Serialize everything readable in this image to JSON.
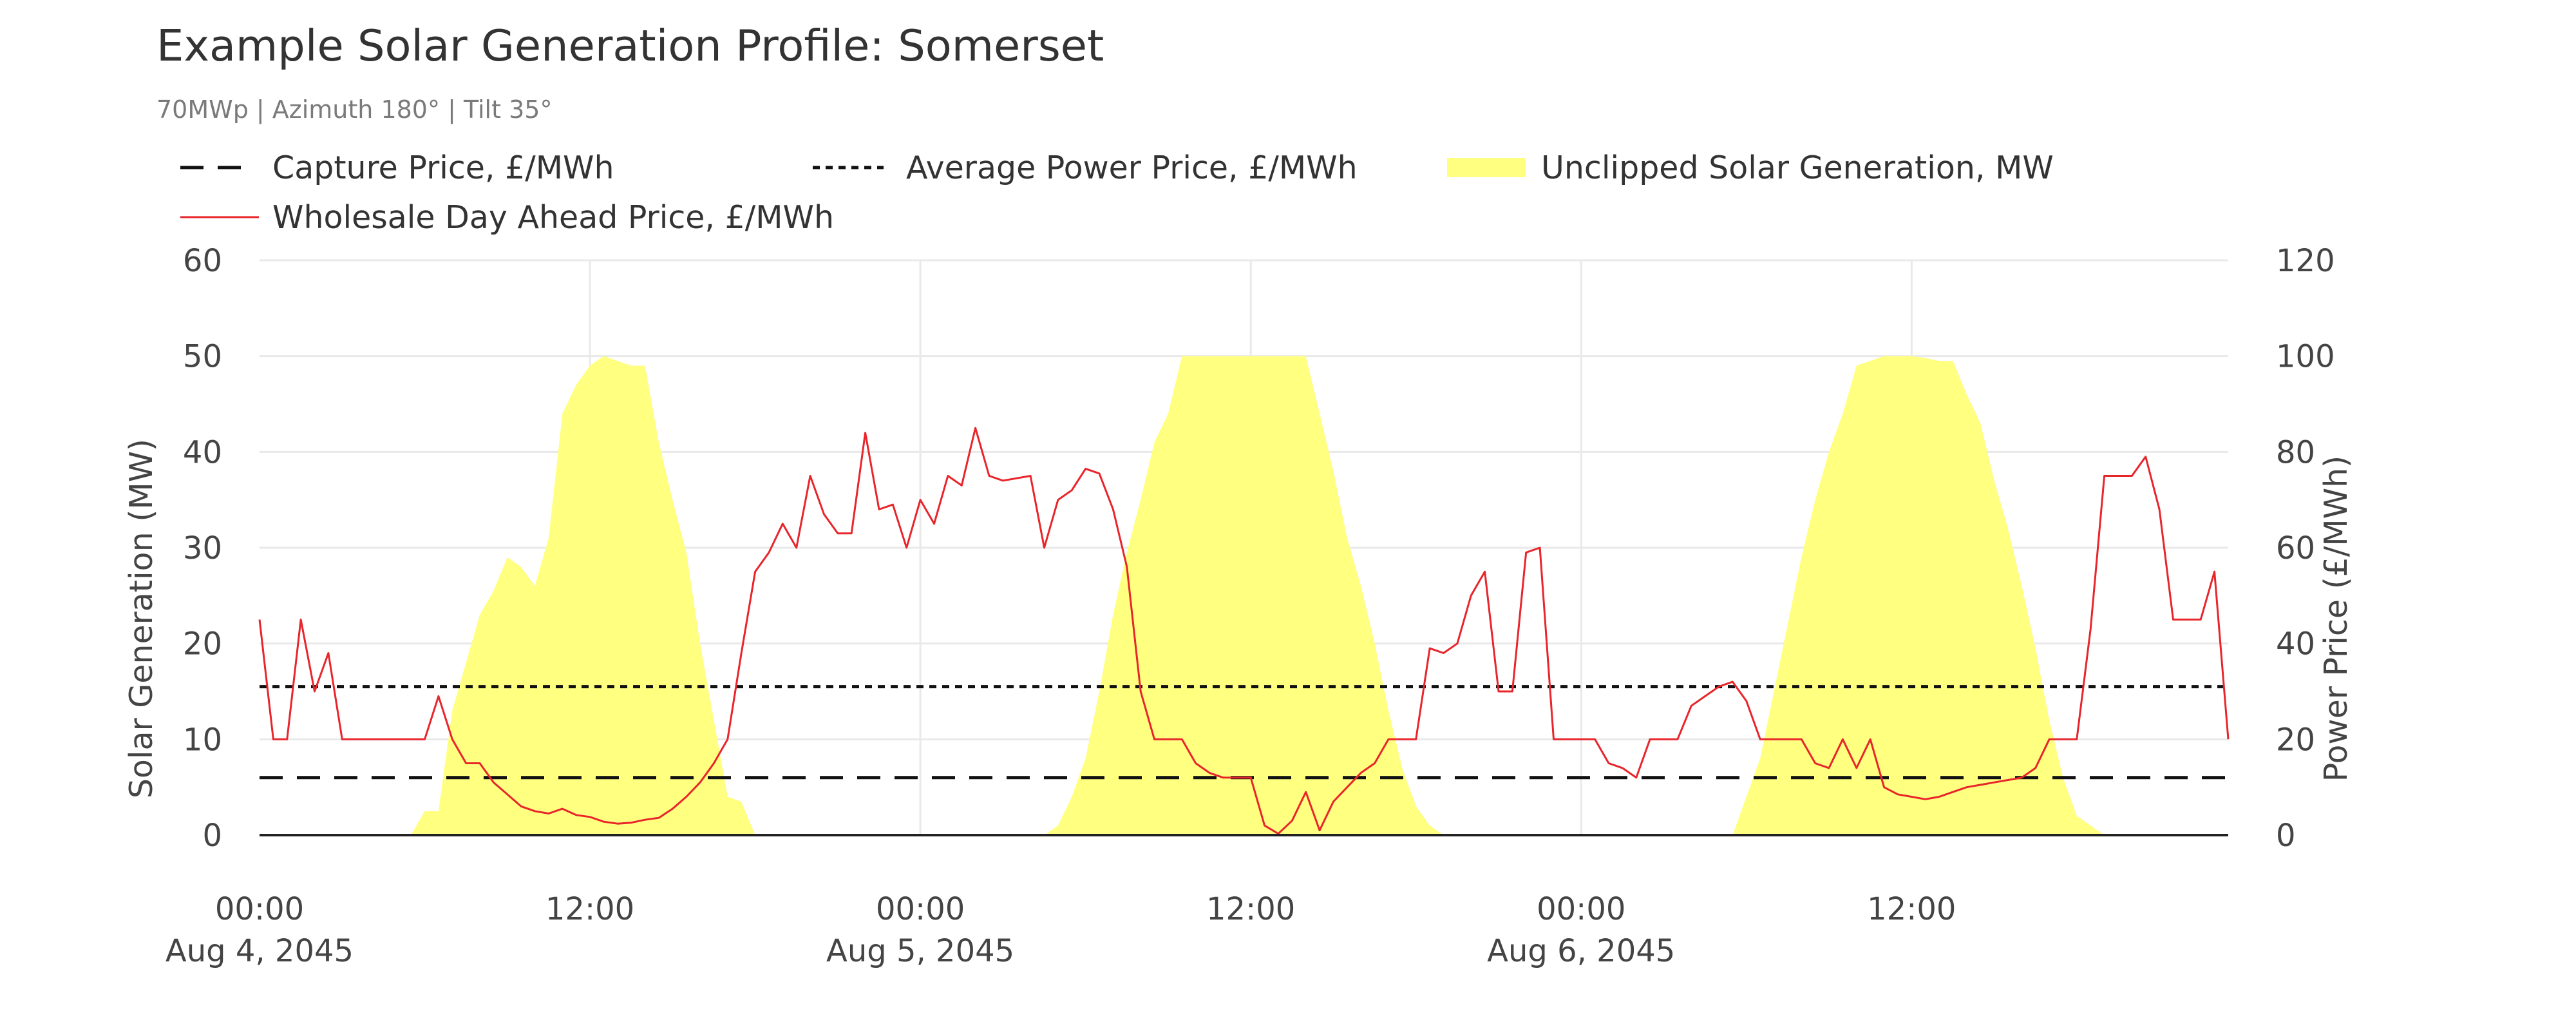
{
  "chart_data": {
    "type": "area",
    "title": "Example Solar Generation Profile: Somerset",
    "subtitle": "70MWp | Azimuth 180° | Tilt 35°",
    "ylabel": "Solar Generation (MW)",
    "y2label": "Power Price (£/MWh)",
    "xlabel": "",
    "ylim": [
      0,
      60
    ],
    "y2lim": [
      0,
      120
    ],
    "xlim_hours": [
      0,
      71.5
    ],
    "grid": true,
    "legend_position": "top",
    "y_ticks": [
      "0",
      "10",
      "20",
      "30",
      "40",
      "50",
      "60"
    ],
    "y2_ticks": [
      "0",
      "20",
      "40",
      "60",
      "80",
      "100",
      "120"
    ],
    "x_ticks": [
      {
        "hour": 0,
        "time": "00:00",
        "date": "Aug 4, 2045"
      },
      {
        "hour": 12,
        "time": "12:00",
        "date": ""
      },
      {
        "hour": 24,
        "time": "00:00",
        "date": "Aug 5, 2045"
      },
      {
        "hour": 36,
        "time": "12:00",
        "date": ""
      },
      {
        "hour": 48,
        "time": "00:00",
        "date": "Aug 6, 2045"
      },
      {
        "hour": 60,
        "time": "12:00",
        "date": ""
      }
    ],
    "series": [
      {
        "name": "Unclipped Solar Generation, MW",
        "axis": "left",
        "style": "area-step",
        "color": "#ffff80",
        "points": [
          [
            5.5,
            0
          ],
          [
            6,
            2.5
          ],
          [
            6.5,
            2.5
          ],
          [
            7,
            13
          ],
          [
            7.5,
            18
          ],
          [
            8,
            23
          ],
          [
            8.5,
            25.5
          ],
          [
            9,
            29
          ],
          [
            9.5,
            28
          ],
          [
            10,
            26
          ],
          [
            10.5,
            31
          ],
          [
            11,
            44
          ],
          [
            11.5,
            47
          ],
          [
            12,
            49
          ],
          [
            12.5,
            50
          ],
          [
            13,
            49.5
          ],
          [
            13.5,
            49
          ],
          [
            14,
            49
          ],
          [
            14.5,
            41
          ],
          [
            15,
            35
          ],
          [
            15.5,
            29.5
          ],
          [
            16,
            20
          ],
          [
            16.5,
            12
          ],
          [
            17,
            4
          ],
          [
            17.5,
            3.5
          ],
          [
            18,
            0
          ],
          [
            28.5,
            0
          ],
          [
            29,
            1
          ],
          [
            29.5,
            4
          ],
          [
            30,
            8
          ],
          [
            30.5,
            15
          ],
          [
            31,
            23
          ],
          [
            31.5,
            29.5
          ],
          [
            32,
            35
          ],
          [
            32.5,
            41
          ],
          [
            33,
            44
          ],
          [
            33.5,
            50
          ],
          [
            34,
            50
          ],
          [
            34.5,
            50
          ],
          [
            35,
            50
          ],
          [
            35.5,
            50
          ],
          [
            36,
            50
          ],
          [
            36.5,
            50
          ],
          [
            37,
            50
          ],
          [
            37.5,
            50
          ],
          [
            38,
            50
          ],
          [
            38.5,
            44
          ],
          [
            39,
            38
          ],
          [
            39.5,
            31
          ],
          [
            40,
            26
          ],
          [
            40.5,
            20
          ],
          [
            41,
            13
          ],
          [
            41.5,
            7
          ],
          [
            42,
            3
          ],
          [
            42.5,
            1
          ],
          [
            43,
            0
          ],
          [
            53.5,
            0
          ],
          [
            54,
            4
          ],
          [
            54.5,
            8
          ],
          [
            55,
            15
          ],
          [
            55.5,
            22
          ],
          [
            56,
            29
          ],
          [
            56.5,
            35
          ],
          [
            57,
            40
          ],
          [
            57.5,
            44
          ],
          [
            58,
            49
          ],
          [
            58.5,
            49.5
          ],
          [
            59,
            50
          ],
          [
            59.5,
            50
          ],
          [
            60,
            50
          ],
          [
            60.5,
            49.8
          ],
          [
            61,
            49.5
          ],
          [
            61.5,
            49.5
          ],
          [
            62,
            46
          ],
          [
            62.5,
            43
          ],
          [
            63,
            37
          ],
          [
            63.5,
            32
          ],
          [
            64,
            26
          ],
          [
            64.5,
            19.5
          ],
          [
            65,
            12
          ],
          [
            65.5,
            6
          ],
          [
            66,
            2
          ],
          [
            66.5,
            1
          ],
          [
            67,
            0
          ]
        ]
      },
      {
        "name": "Wholesale Day Ahead Price, £/MWh",
        "axis": "right",
        "style": "line",
        "color": "#e8252b",
        "points": [
          [
            0,
            45
          ],
          [
            0.5,
            20
          ],
          [
            1,
            20
          ],
          [
            1.5,
            45
          ],
          [
            2,
            30
          ],
          [
            2.5,
            38
          ],
          [
            3,
            20
          ],
          [
            3.5,
            20
          ],
          [
            4,
            20
          ],
          [
            4.5,
            20
          ],
          [
            5,
            20
          ],
          [
            5.5,
            20
          ],
          [
            6,
            20
          ],
          [
            6.5,
            29
          ],
          [
            7,
            20
          ],
          [
            7.5,
            15
          ],
          [
            8,
            15
          ],
          [
            8.5,
            11
          ],
          [
            9,
            8.5
          ],
          [
            9.5,
            6
          ],
          [
            10,
            5
          ],
          [
            10.5,
            4.5
          ],
          [
            11,
            5.5
          ],
          [
            11.5,
            4.2
          ],
          [
            12,
            3.8
          ],
          [
            12.5,
            2.8
          ],
          [
            13,
            2.4
          ],
          [
            13.5,
            2.6
          ],
          [
            14,
            3.2
          ],
          [
            14.5,
            3.6
          ],
          [
            15,
            5.5
          ],
          [
            15.5,
            8
          ],
          [
            16,
            11
          ],
          [
            16.5,
            15
          ],
          [
            17,
            20
          ],
          [
            17.5,
            38
          ],
          [
            18,
            55
          ],
          [
            18.5,
            59
          ],
          [
            19,
            65
          ],
          [
            19.5,
            60
          ],
          [
            20,
            75
          ],
          [
            20.5,
            67
          ],
          [
            21,
            63
          ],
          [
            21.5,
            63
          ],
          [
            22,
            84
          ],
          [
            22.5,
            68
          ],
          [
            23,
            69
          ],
          [
            23.5,
            60
          ],
          [
            24,
            70
          ],
          [
            24.5,
            65
          ],
          [
            25,
            75
          ],
          [
            25.5,
            73
          ],
          [
            26,
            85
          ],
          [
            26.5,
            75
          ],
          [
            27,
            74
          ],
          [
            27.5,
            74.5
          ],
          [
            28,
            75
          ],
          [
            28.5,
            60
          ],
          [
            29,
            70
          ],
          [
            29.5,
            72
          ],
          [
            30,
            76.5
          ],
          [
            30.5,
            75.5
          ],
          [
            31,
            68
          ],
          [
            31.5,
            56
          ],
          [
            32,
            30
          ],
          [
            32.5,
            20
          ],
          [
            33,
            20
          ],
          [
            33.5,
            20
          ],
          [
            34,
            15
          ],
          [
            34.5,
            13
          ],
          [
            35,
            12
          ],
          [
            35.5,
            12
          ],
          [
            36,
            12
          ],
          [
            36.5,
            2
          ],
          [
            37,
            0.3
          ],
          [
            37.5,
            3
          ],
          [
            38,
            9
          ],
          [
            38.5,
            1
          ],
          [
            39,
            7
          ],
          [
            39.5,
            10
          ],
          [
            40,
            13
          ],
          [
            40.5,
            15
          ],
          [
            41,
            20
          ],
          [
            41.5,
            20
          ],
          [
            42,
            20
          ],
          [
            42.5,
            39
          ],
          [
            43,
            38
          ],
          [
            43.5,
            40
          ],
          [
            44,
            50
          ],
          [
            44.5,
            55
          ],
          [
            45,
            30
          ],
          [
            45.5,
            30
          ],
          [
            46,
            59
          ],
          [
            46.5,
            60
          ],
          [
            47,
            20
          ],
          [
            47.5,
            20
          ],
          [
            48,
            20
          ],
          [
            48.5,
            20
          ],
          [
            49,
            15
          ],
          [
            49.5,
            14
          ],
          [
            50,
            12
          ],
          [
            50.5,
            20
          ],
          [
            51,
            20
          ],
          [
            51.5,
            20
          ],
          [
            52,
            27
          ],
          [
            52.5,
            29
          ],
          [
            53,
            31
          ],
          [
            53.5,
            32
          ],
          [
            54,
            28
          ],
          [
            54.5,
            20
          ],
          [
            55,
            20
          ],
          [
            55.5,
            20
          ],
          [
            56,
            20
          ],
          [
            56.5,
            15
          ],
          [
            57,
            14
          ],
          [
            57.5,
            20
          ],
          [
            58,
            14
          ],
          [
            58.5,
            20
          ],
          [
            59,
            10
          ],
          [
            59.5,
            8.5
          ],
          [
            60,
            8
          ],
          [
            60.5,
            7.5
          ],
          [
            61,
            8
          ],
          [
            61.5,
            9
          ],
          [
            62,
            10
          ],
          [
            62.5,
            10.5
          ],
          [
            63,
            11
          ],
          [
            63.5,
            11.5
          ],
          [
            64,
            12
          ],
          [
            64.5,
            14
          ],
          [
            65,
            20
          ],
          [
            65.5,
            20
          ],
          [
            66,
            20
          ],
          [
            66.5,
            43
          ],
          [
            67,
            75
          ],
          [
            67.5,
            75
          ],
          [
            68,
            75
          ],
          [
            68.5,
            79
          ],
          [
            69,
            68
          ],
          [
            69.5,
            45
          ],
          [
            70,
            45
          ],
          [
            70.5,
            45
          ],
          [
            71,
            55
          ],
          [
            71.5,
            20
          ]
        ]
      },
      {
        "name": "Average Power Price, £/MWh",
        "axis": "right",
        "style": "dotted",
        "color": "#111111",
        "value": 31
      },
      {
        "name": "Capture Price, £/MWh",
        "axis": "right",
        "style": "dashed",
        "color": "#111111",
        "value": 12
      }
    ]
  }
}
